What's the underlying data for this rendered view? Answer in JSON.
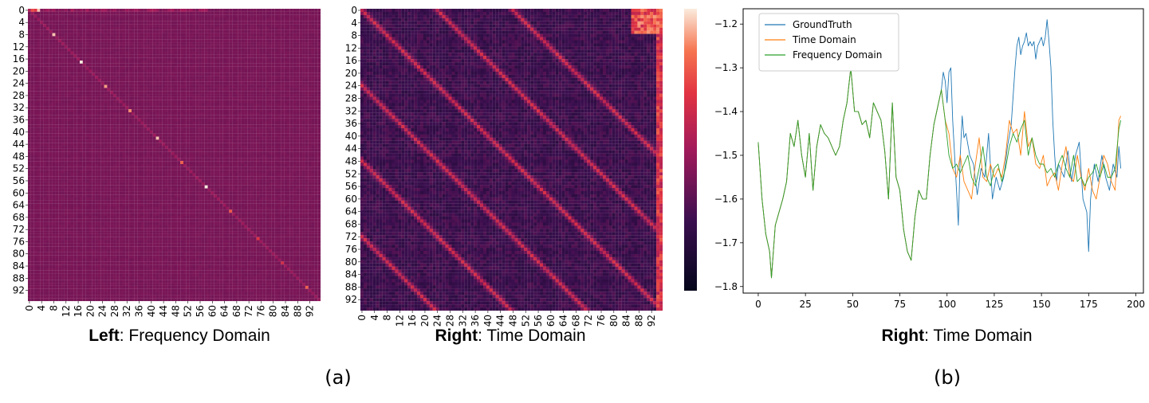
{
  "captions": {
    "left_bold": "Left",
    "left_rest": ": Frequency Domain",
    "mid_bold": "Right",
    "mid_rest": ": Time Domain",
    "right_bold": "Right",
    "right_rest": ": Time Domain",
    "sub_a": "(a)",
    "sub_b": "(b)"
  },
  "colors": {
    "heat_low": "#03051a",
    "heat_mid": "#701f57",
    "heat_midhigh": "#e13342",
    "heat_high": "#f6b48f",
    "heat_top": "#faebdd",
    "ground_truth": "#1f77b4",
    "time_domain": "#ff7f0e",
    "frequency_domain": "#2ca02c"
  },
  "chart_data": [
    {
      "type": "heatmap",
      "name": "frequency_domain_attention",
      "size": 96,
      "tick_labels": [
        "0",
        "4",
        "8",
        "12",
        "16",
        "20",
        "24",
        "28",
        "32",
        "36",
        "40",
        "44",
        "48",
        "52",
        "56",
        "60",
        "64",
        "68",
        "72",
        "76",
        "80",
        "84",
        "88",
        "92"
      ],
      "background_level": 0.4,
      "description_pattern": "near-uniform matrix with bright diagonal spots",
      "bright_cells": [
        [
          0,
          1,
          0.75
        ],
        [
          0,
          2,
          0.7
        ],
        [
          0,
          3,
          0.95
        ],
        [
          8,
          8,
          0.95
        ],
        [
          17,
          17,
          1.0
        ],
        [
          25,
          25,
          0.9
        ],
        [
          33,
          33,
          0.88
        ],
        [
          42,
          42,
          0.95
        ],
        [
          50,
          50,
          0.8
        ],
        [
          58,
          58,
          1.0
        ],
        [
          66,
          66,
          0.78
        ],
        [
          75,
          75,
          0.7
        ],
        [
          83,
          83,
          0.65
        ],
        [
          91,
          91,
          0.8
        ]
      ],
      "colorbar": true
    },
    {
      "type": "heatmap",
      "name": "time_domain_attention",
      "size": 96,
      "tick_labels": [
        "0",
        "4",
        "8",
        "12",
        "16",
        "20",
        "24",
        "28",
        "32",
        "36",
        "40",
        "44",
        "48",
        "52",
        "56",
        "60",
        "64",
        "68",
        "72",
        "76",
        "80",
        "84",
        "88",
        "92"
      ],
      "diagonal_offsets": [
        48,
        24,
        0,
        -24,
        -48,
        -72
      ],
      "background_level": 0.25
    },
    {
      "type": "line",
      "x_ticks": [
        0,
        25,
        50,
        75,
        100,
        125,
        150,
        175,
        200
      ],
      "y_ticks": [
        -1.2,
        -1.3,
        -1.4,
        -1.5,
        -1.6,
        -1.7,
        -1.8
      ],
      "y_tick_labels": [
        "−1.2",
        "−1.3",
        "−1.4",
        "−1.5",
        "−1.6",
        "−1.7",
        "−1.8"
      ],
      "xlim": [
        -8,
        204
      ],
      "ylim": [
        -1.815,
        -1.165
      ],
      "legend_position": "upper left",
      "series": [
        {
          "name": "GroundTruth",
          "color": "#1f77b4",
          "x": [
            0,
            2,
            4,
            6,
            7,
            9,
            11,
            13,
            15,
            17,
            19,
            21,
            23,
            25,
            27,
            29,
            31,
            33,
            35,
            37,
            39,
            41,
            43,
            45,
            47,
            49,
            51,
            53,
            55,
            57,
            59,
            61,
            63,
            65,
            67,
            69,
            71,
            73,
            75,
            77,
            79,
            81,
            83,
            85,
            87,
            89,
            91,
            93,
            95,
            97,
            98,
            99,
            100,
            101,
            102,
            103,
            104,
            105,
            106,
            107,
            108,
            109,
            110,
            112,
            114,
            116,
            118,
            120,
            122,
            124,
            126,
            128,
            130,
            132,
            134,
            136,
            137,
            138,
            139,
            140,
            141,
            142,
            143,
            144,
            145,
            146,
            147,
            148,
            149,
            150,
            151,
            152,
            153,
            154,
            155,
            156,
            157,
            158,
            159,
            160,
            162,
            164,
            166,
            168,
            170,
            172,
            174,
            175,
            176,
            178,
            180,
            182,
            184,
            186,
            188,
            190,
            191,
            192
          ],
          "y": [
            -1.47,
            -1.6,
            -1.68,
            -1.72,
            -1.78,
            -1.66,
            -1.63,
            -1.6,
            -1.56,
            -1.45,
            -1.48,
            -1.42,
            -1.5,
            -1.55,
            -1.45,
            -1.58,
            -1.48,
            -1.43,
            -1.45,
            -1.46,
            -1.48,
            -1.5,
            -1.48,
            -1.42,
            -1.38,
            -1.3,
            -1.4,
            -1.4,
            -1.43,
            -1.42,
            -1.46,
            -1.38,
            -1.4,
            -1.42,
            -1.49,
            -1.6,
            -1.38,
            -1.55,
            -1.58,
            -1.67,
            -1.72,
            -1.74,
            -1.64,
            -1.58,
            -1.6,
            -1.6,
            -1.5,
            -1.43,
            -1.39,
            -1.35,
            -1.31,
            -1.33,
            -1.38,
            -1.31,
            -1.3,
            -1.42,
            -1.5,
            -1.58,
            -1.66,
            -1.5,
            -1.41,
            -1.46,
            -1.45,
            -1.5,
            -1.52,
            -1.59,
            -1.53,
            -1.55,
            -1.45,
            -1.6,
            -1.55,
            -1.58,
            -1.55,
            -1.48,
            -1.43,
            -1.3,
            -1.25,
            -1.23,
            -1.27,
            -1.25,
            -1.24,
            -1.22,
            -1.25,
            -1.24,
            -1.25,
            -1.24,
            -1.28,
            -1.25,
            -1.24,
            -1.23,
            -1.25,
            -1.23,
            -1.19,
            -1.24,
            -1.3,
            -1.42,
            -1.5,
            -1.56,
            -1.52,
            -1.53,
            -1.55,
            -1.49,
            -1.56,
            -1.5,
            -1.47,
            -1.6,
            -1.63,
            -1.72,
            -1.6,
            -1.52,
            -1.56,
            -1.5,
            -1.55,
            -1.58,
            -1.52,
            -1.55,
            -1.48,
            -1.53
          ]
        },
        {
          "name": "Time Domain",
          "color": "#ff7f0e",
          "x": [
            0,
            2,
            4,
            6,
            7,
            9,
            11,
            13,
            15,
            17,
            19,
            21,
            23,
            25,
            27,
            29,
            31,
            33,
            35,
            37,
            39,
            41,
            43,
            45,
            47,
            49,
            51,
            53,
            55,
            57,
            59,
            61,
            63,
            65,
            67,
            69,
            71,
            73,
            75,
            77,
            79,
            81,
            83,
            85,
            87,
            89,
            91,
            93,
            95,
            97,
            99,
            101,
            103,
            105,
            107,
            109,
            111,
            113,
            115,
            117,
            119,
            121,
            123,
            125,
            127,
            129,
            131,
            133,
            135,
            137,
            139,
            141,
            143,
            145,
            147,
            149,
            151,
            153,
            155,
            157,
            159,
            161,
            163,
            165,
            167,
            169,
            171,
            173,
            175,
            177,
            179,
            181,
            183,
            185,
            187,
            189,
            191,
            192
          ],
          "y": [
            -1.47,
            -1.6,
            -1.68,
            -1.72,
            -1.78,
            -1.66,
            -1.63,
            -1.6,
            -1.56,
            -1.45,
            -1.48,
            -1.42,
            -1.5,
            -1.55,
            -1.45,
            -1.58,
            -1.48,
            -1.43,
            -1.45,
            -1.46,
            -1.48,
            -1.5,
            -1.48,
            -1.42,
            -1.38,
            -1.3,
            -1.4,
            -1.4,
            -1.43,
            -1.42,
            -1.46,
            -1.38,
            -1.4,
            -1.42,
            -1.49,
            -1.6,
            -1.38,
            -1.55,
            -1.58,
            -1.67,
            -1.72,
            -1.74,
            -1.64,
            -1.58,
            -1.6,
            -1.6,
            -1.5,
            -1.43,
            -1.39,
            -1.35,
            -1.42,
            -1.45,
            -1.53,
            -1.55,
            -1.5,
            -1.56,
            -1.58,
            -1.6,
            -1.52,
            -1.46,
            -1.55,
            -1.56,
            -1.52,
            -1.55,
            -1.53,
            -1.55,
            -1.5,
            -1.42,
            -1.45,
            -1.44,
            -1.5,
            -1.4,
            -1.48,
            -1.46,
            -1.52,
            -1.53,
            -1.5,
            -1.57,
            -1.55,
            -1.54,
            -1.58,
            -1.52,
            -1.48,
            -1.55,
            -1.56,
            -1.5,
            -1.55,
            -1.58,
            -1.53,
            -1.58,
            -1.6,
            -1.55,
            -1.5,
            -1.52,
            -1.56,
            -1.58,
            -1.42,
            -1.41
          ]
        },
        {
          "name": "Frequency Domain",
          "color": "#2ca02c",
          "x": [
            0,
            2,
            4,
            6,
            7,
            9,
            11,
            13,
            15,
            17,
            19,
            21,
            23,
            25,
            27,
            29,
            31,
            33,
            35,
            37,
            39,
            41,
            43,
            45,
            47,
            49,
            51,
            53,
            55,
            57,
            59,
            61,
            63,
            65,
            67,
            69,
            71,
            73,
            75,
            77,
            79,
            81,
            83,
            85,
            87,
            89,
            91,
            93,
            95,
            97,
            99,
            101,
            103,
            105,
            107,
            109,
            111,
            113,
            115,
            117,
            119,
            121,
            123,
            125,
            127,
            129,
            131,
            133,
            135,
            137,
            139,
            141,
            143,
            145,
            147,
            149,
            151,
            153,
            155,
            157,
            159,
            161,
            163,
            165,
            167,
            169,
            171,
            173,
            175,
            177,
            179,
            181,
            183,
            185,
            187,
            189,
            191,
            192
          ],
          "y": [
            -1.47,
            -1.6,
            -1.68,
            -1.72,
            -1.78,
            -1.66,
            -1.63,
            -1.6,
            -1.56,
            -1.45,
            -1.48,
            -1.42,
            -1.5,
            -1.55,
            -1.45,
            -1.58,
            -1.48,
            -1.43,
            -1.45,
            -1.46,
            -1.48,
            -1.5,
            -1.48,
            -1.42,
            -1.38,
            -1.3,
            -1.4,
            -1.4,
            -1.43,
            -1.42,
            -1.46,
            -1.38,
            -1.4,
            -1.42,
            -1.49,
            -1.6,
            -1.38,
            -1.55,
            -1.58,
            -1.67,
            -1.72,
            -1.74,
            -1.64,
            -1.58,
            -1.6,
            -1.6,
            -1.5,
            -1.43,
            -1.39,
            -1.35,
            -1.42,
            -1.5,
            -1.53,
            -1.52,
            -1.54,
            -1.52,
            -1.5,
            -1.55,
            -1.57,
            -1.53,
            -1.48,
            -1.55,
            -1.57,
            -1.53,
            -1.52,
            -1.56,
            -1.53,
            -1.48,
            -1.45,
            -1.47,
            -1.44,
            -1.42,
            -1.5,
            -1.46,
            -1.5,
            -1.52,
            -1.52,
            -1.54,
            -1.53,
            -1.55,
            -1.52,
            -1.5,
            -1.53,
            -1.55,
            -1.5,
            -1.56,
            -1.55,
            -1.57,
            -1.55,
            -1.54,
            -1.52,
            -1.55,
            -1.52,
            -1.55,
            -1.55,
            -1.53,
            -1.44,
            -1.42
          ]
        }
      ]
    }
  ]
}
